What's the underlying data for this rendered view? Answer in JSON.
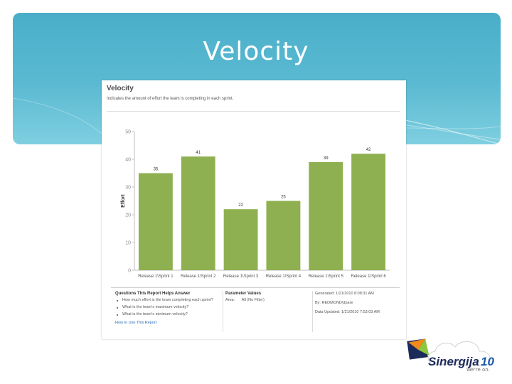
{
  "slide": {
    "title": "Velocity"
  },
  "report": {
    "title": "Velocity",
    "description": "Indicates the amount of effort the team is completing in each sprint."
  },
  "chart_data": {
    "type": "bar",
    "categories": [
      "Release 1\\Sprint 1",
      "Release 1\\Sprint 2",
      "Release 1\\Sprint 3",
      "Release 1\\Sprint 4",
      "Release 1\\Sprint 5",
      "Release 1\\Sprint 6"
    ],
    "values": [
      35,
      41,
      22,
      25,
      39,
      42
    ],
    "data_labels": [
      "35",
      "41",
      "22",
      "25",
      "39",
      "42"
    ],
    "ylabel": "Effort",
    "xlabel": "",
    "ylim": [
      0,
      50
    ],
    "yticks": [
      "0",
      "10",
      "20",
      "30",
      "40",
      "50"
    ],
    "grid": false,
    "bar_color": "#8fb050"
  },
  "footer": {
    "questions": {
      "title": "Questions This Report Helps Answer",
      "items": [
        "How much effort is the team completing each sprint?",
        "What is the team's maximum velocity?",
        "What is the team's minimum velocity?"
      ],
      "link": "How to Use This Report"
    },
    "parameters": {
      "title": "Parameter Values",
      "area_label": "Area:",
      "area_value": "All (No Filter)"
    },
    "meta": {
      "generated": "Generated: 1/21/2010 8:08:31 AM",
      "by": "By: REDMOND\\dpare",
      "data_updated": "Data Updated: 1/21/2010 7:53:03 AM"
    }
  },
  "logo": {
    "name_main": "Sinergija",
    "name_num": "10",
    "tagline": "We're on.",
    "colors": {
      "orange": "#f08a1c",
      "green": "#8cc63f",
      "blue": "#1a5aa8",
      "navy": "#1c2a5a"
    }
  }
}
